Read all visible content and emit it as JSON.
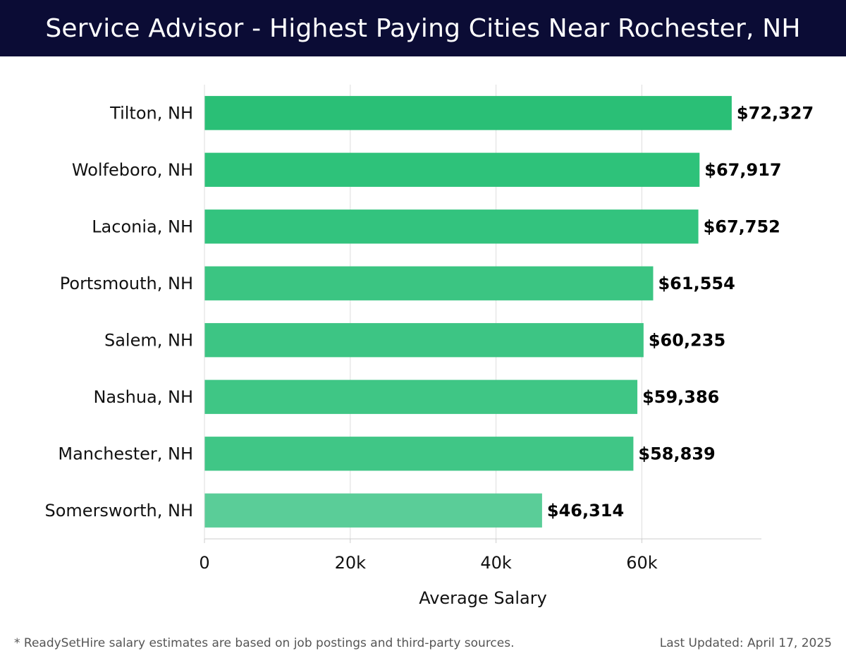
{
  "chart_data": {
    "type": "bar",
    "orientation": "horizontal",
    "title": "Service Advisor - Highest Paying Cities Near Rochester, NH",
    "xlabel": "Average Salary",
    "ylabel": "",
    "categories": [
      "Tilton, NH",
      "Wolfeboro, NH",
      "Laconia, NH",
      "Portsmouth, NH",
      "Salem, NH",
      "Nashua, NH",
      "Manchester, NH",
      "Somersworth, NH"
    ],
    "values": [
      72327,
      67917,
      67752,
      61554,
      60235,
      59386,
      58839,
      46314
    ],
    "value_labels": [
      "$72,327",
      "$67,917",
      "$67,752",
      "$61,554",
      "$60,235",
      "$59,386",
      "$58,839",
      "$46,314"
    ],
    "xticks": [
      0,
      20000,
      40000,
      60000
    ],
    "xtick_labels": [
      "0",
      "20k",
      "40k",
      "60k"
    ],
    "xlim": [
      0,
      76400
    ],
    "grid": true,
    "bar_colors": [
      "#2abf76",
      "#2ec27a",
      "#33c37e",
      "#3bc582",
      "#3dc584",
      "#3fc685",
      "#40c686",
      "#5acd98"
    ]
  },
  "footer": {
    "note": "* ReadySetHire salary estimates are based on job postings and third-party sources.",
    "updated": "Last Updated: April 17, 2025"
  }
}
